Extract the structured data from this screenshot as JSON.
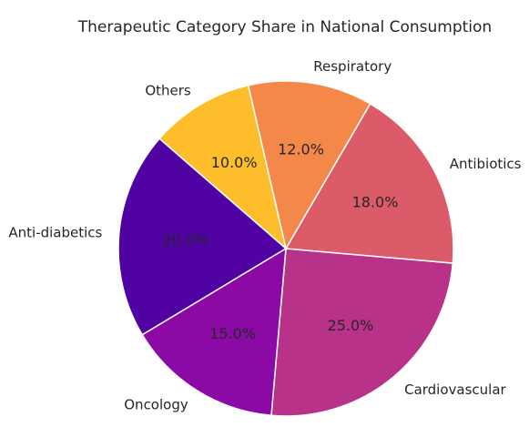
{
  "chart_data": {
    "type": "pie",
    "title": "Therapeutic Category Share in National Consumption",
    "categories": [
      "Cardiovascular",
      "Antibiotics",
      "Respiratory",
      "Others",
      "Anti-diabetics",
      "Oncology"
    ],
    "values": [
      25.0,
      18.0,
      12.0,
      10.0,
      20.0,
      15.0
    ],
    "value_labels": [
      "25.0%",
      "18.0%",
      "12.0%",
      "10.0%",
      "20.0%",
      "15.0%"
    ],
    "colors": [
      "#b83289",
      "#db5c68",
      "#f48849",
      "#febd2a",
      "#5002a2",
      "#8b0aa5"
    ],
    "start_angle_deg": 265,
    "direction": "counterclockwise",
    "legend": "none"
  }
}
